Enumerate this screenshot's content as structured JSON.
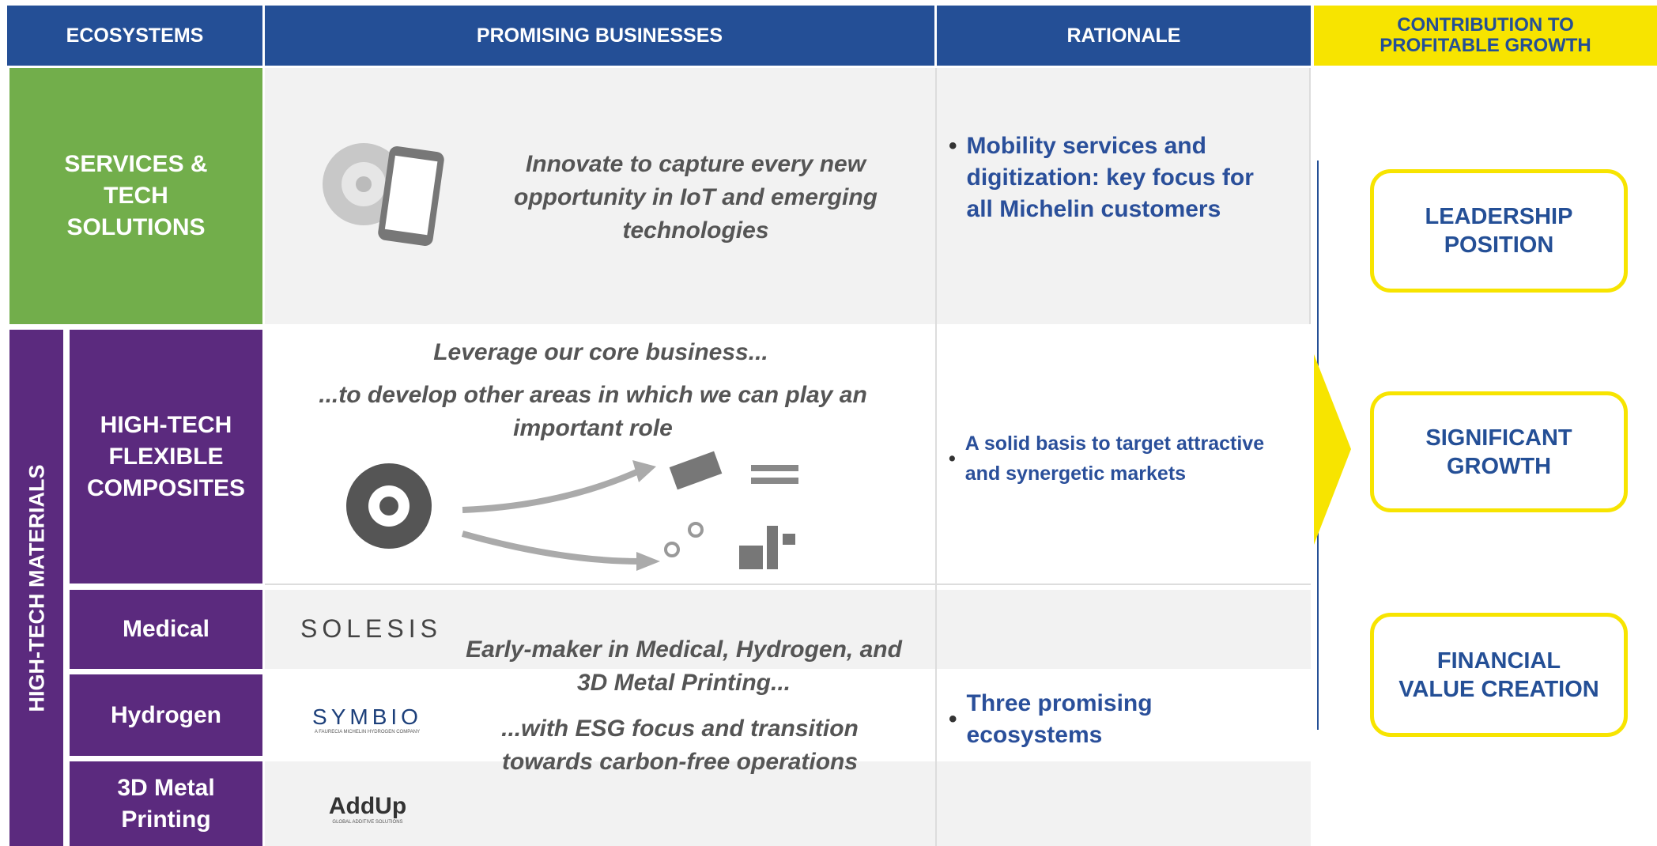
{
  "header": {
    "ecosystems": "ECOSYSTEMS",
    "promising_businesses": "PROMISING BUSINESSES",
    "rationale": "RATIONALE",
    "contribution": "CONTRIBUTION TO PROFITABLE GROWTH"
  },
  "services": {
    "label": "SERVICES & TECH SOLUTIONS",
    "business": "Innovate to capture every new opportunity in IoT and emerging technologies",
    "rationale": "Mobility services and digitization: key focus for all Michelin customers"
  },
  "high_tech": {
    "label": "HIGH-TECH MATERIALS",
    "flexible": {
      "label": "HIGH-TECH FLEXIBLE COMPOSITES",
      "business": [
        "Leverage our core business...",
        "...to develop other areas in which we can play an important role"
      ],
      "rationale": "A solid basis to target attractive and synergetic markets"
    },
    "ecosystems": [
      "Medical",
      "Hydrogen",
      "3D Metal Printing"
    ],
    "logos": {
      "solesis": "SOLESIS",
      "symbio": "SYMBIO",
      "symbio_tagline": "A FAURECIA MICHELIN HYDROGEN COMPANY",
      "addup": "AddUp",
      "addup_tagline": "GLOBAL ADDITIVE SOLUTIONS"
    },
    "business": [
      "Early-maker in Medical, Hydrogen, and 3D Metal Printing...",
      "...with ESG focus and transition towards carbon-free operations"
    ],
    "rationale": "Three promising ecosystems"
  },
  "contribution": [
    "LEADERSHIP POSITION",
    "SIGNIFICANT GROWTH",
    "FINANCIAL VALUE CREATION"
  ]
}
